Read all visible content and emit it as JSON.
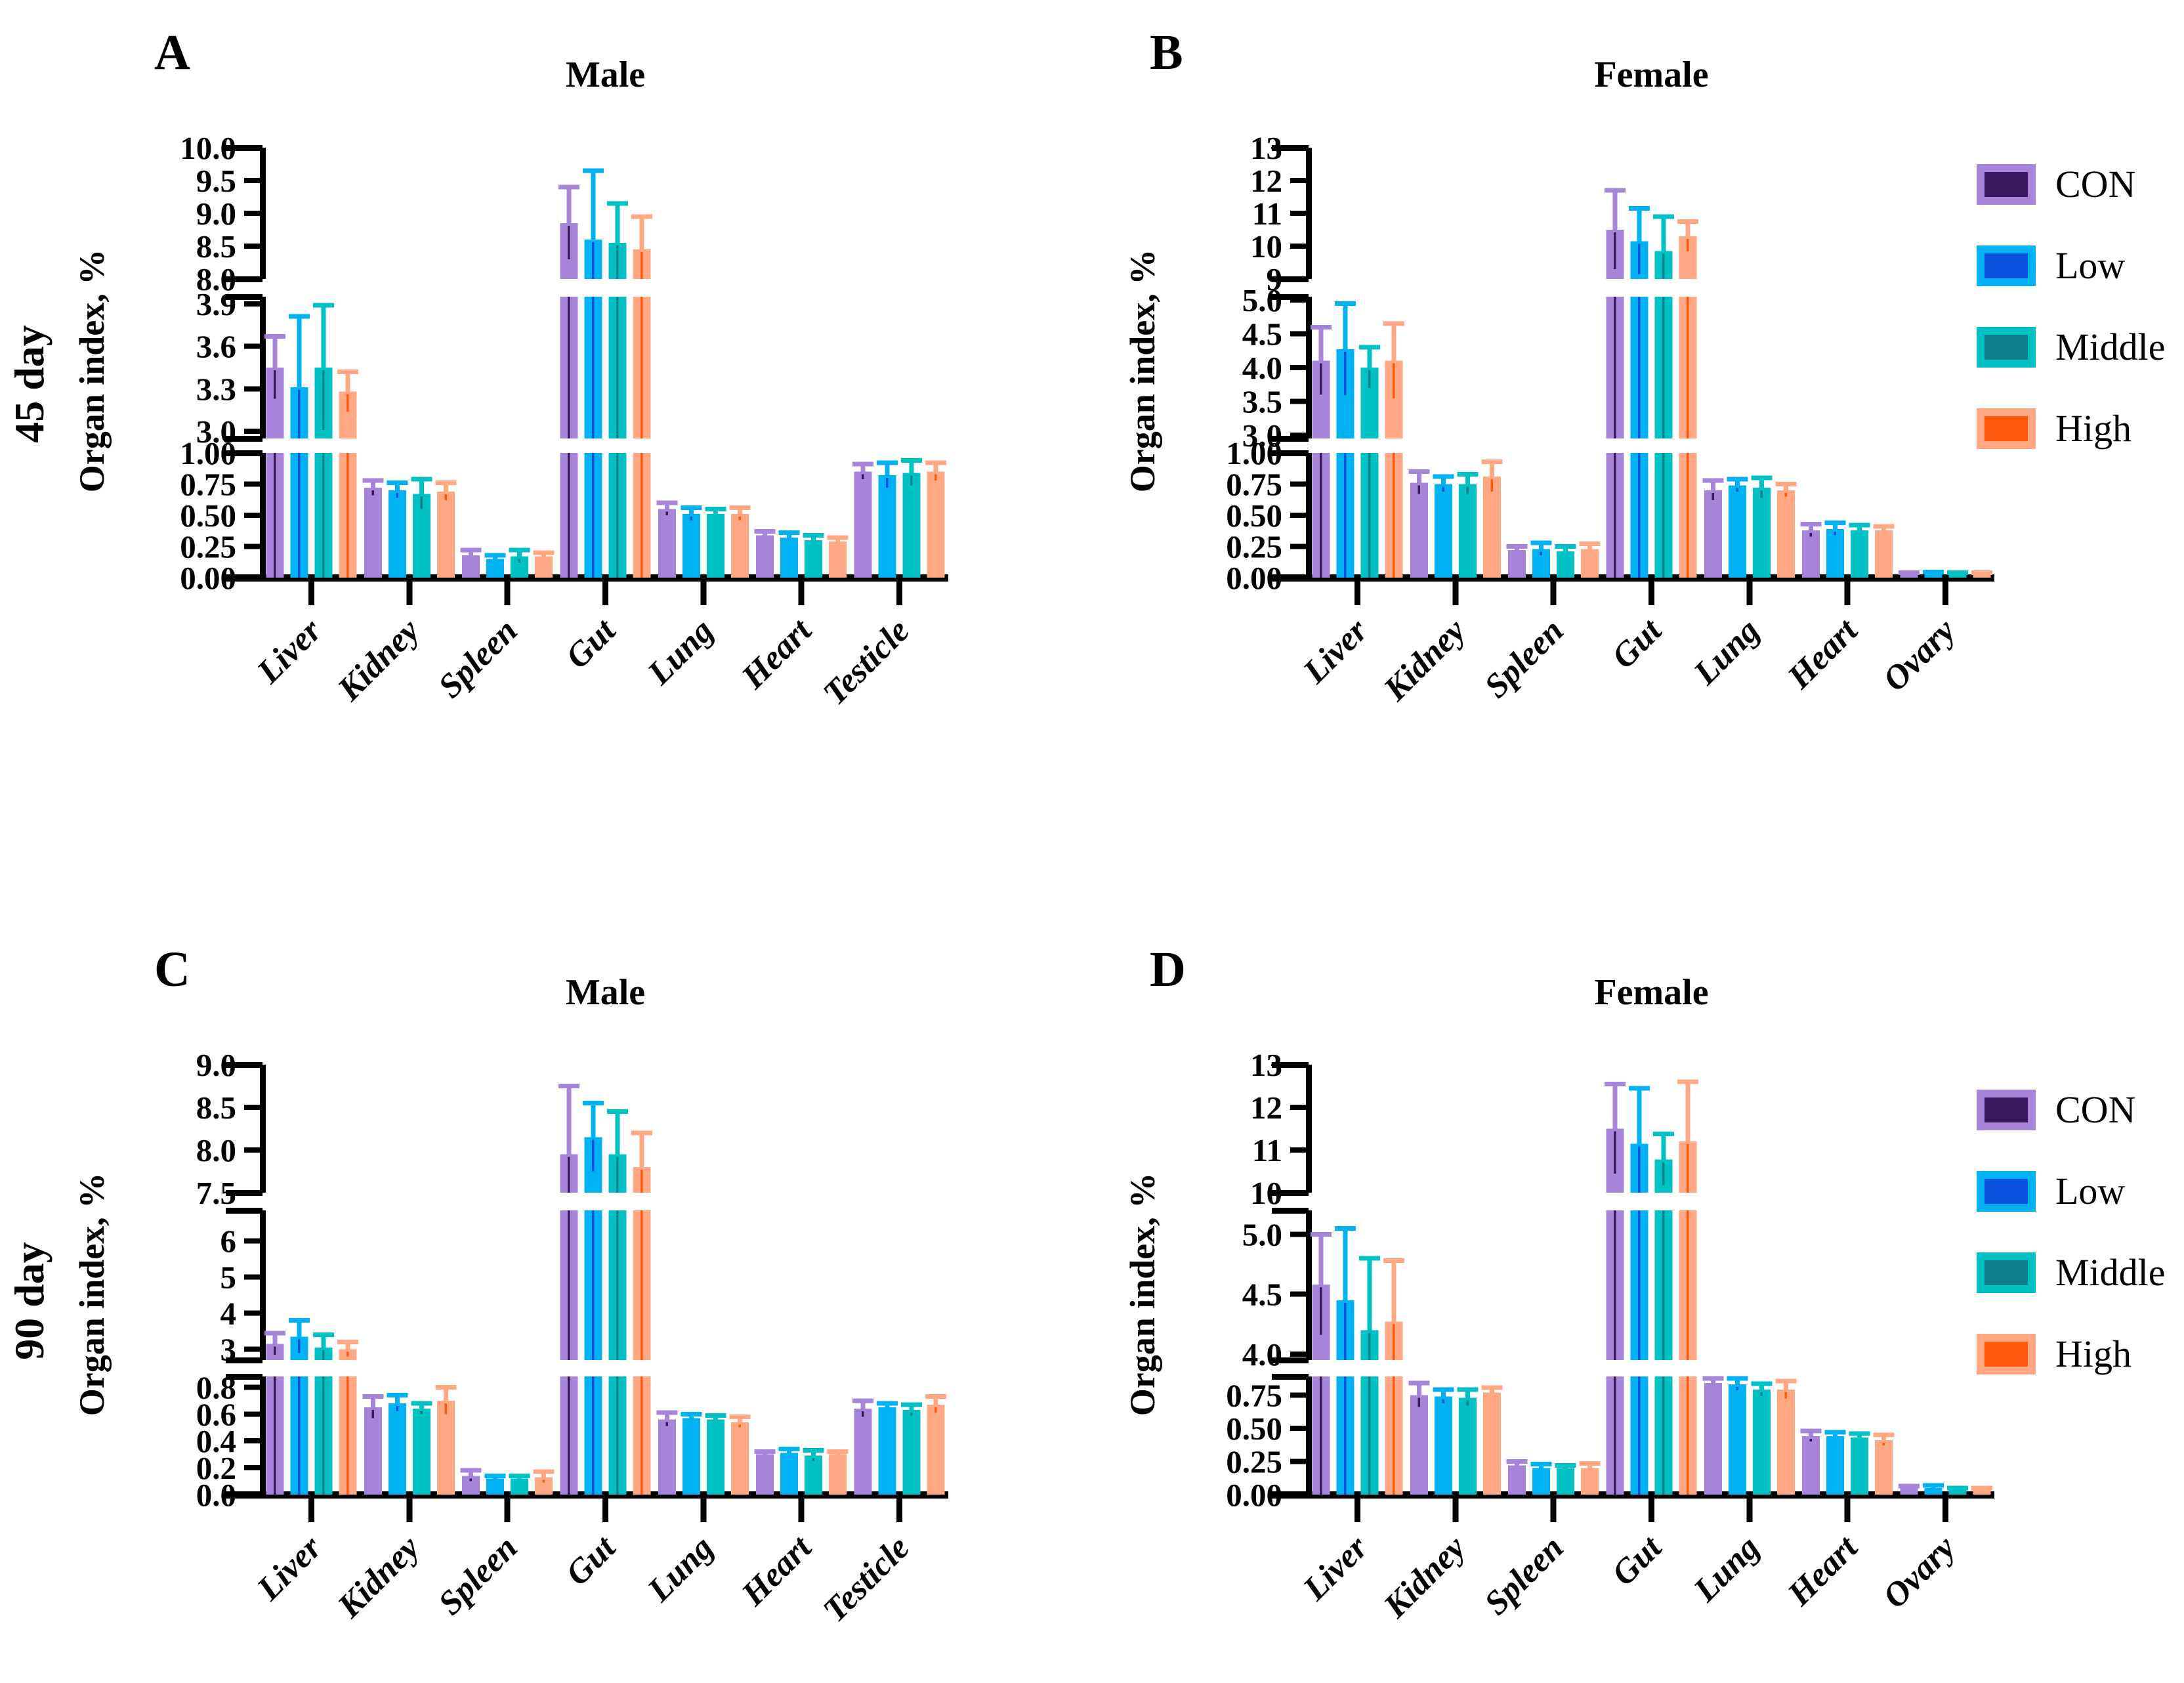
{
  "figure": {
    "ylabel": "Organ index, %",
    "row_labels": [
      "45 day",
      "90 day"
    ]
  },
  "legend": {
    "position": "right",
    "entries": [
      {
        "label": "CON",
        "fill": "#A584DA",
        "dark": "#38185F"
      },
      {
        "label": "Low",
        "fill": "#00B2F2",
        "dark": "#0B53DE"
      },
      {
        "label": "Middle",
        "fill": "#00C2C4",
        "dark": "#0F7F8B"
      },
      {
        "label": "High",
        "fill": "#FFA883",
        "dark": "#FF5A0D"
      }
    ]
  },
  "chart_data": [
    {
      "letter": "A",
      "title": "Male",
      "row_label": "45 day",
      "type": "bar",
      "grid": false,
      "ylabel": "Organ index, %",
      "categories": [
        "Liver",
        "Kidney",
        "Spleen",
        "Gut",
        "Lung",
        "Heart",
        "Testicle"
      ],
      "segments": [
        {
          "range": [
            0.0,
            1.0
          ],
          "ticks": [
            0.0,
            0.25,
            0.5,
            0.75,
            1.0
          ],
          "tick_labels": [
            "0.00",
            "0.25",
            "0.50",
            "0.75",
            "1.00"
          ]
        },
        {
          "range": [
            2.95,
            3.95
          ],
          "ticks": [
            3.0,
            3.3,
            3.6,
            3.9
          ],
          "tick_labels": [
            "3.0",
            "3.3",
            "3.6",
            "3.9"
          ]
        },
        {
          "range": [
            8.0,
            10.0
          ],
          "ticks": [
            8.0,
            8.5,
            9.0,
            9.5,
            10.0
          ],
          "tick_labels": [
            "8.0",
            "8.5",
            "9.0",
            "9.5",
            "10.0"
          ]
        }
      ],
      "series": [
        {
          "name": "CON",
          "values": [
            3.45,
            0.72,
            0.18,
            8.85,
            0.55,
            0.34,
            0.85
          ],
          "errors": [
            0.22,
            0.06,
            0.04,
            0.55,
            0.05,
            0.03,
            0.06
          ]
        },
        {
          "name": "Low",
          "values": [
            3.31,
            0.7,
            0.15,
            8.6,
            0.51,
            0.32,
            0.82
          ],
          "errors": [
            0.5,
            0.06,
            0.03,
            1.05,
            0.05,
            0.04,
            0.1
          ]
        },
        {
          "name": "Middle",
          "values": [
            3.45,
            0.67,
            0.17,
            8.55,
            0.51,
            0.3,
            0.84
          ],
          "errors": [
            0.44,
            0.12,
            0.05,
            0.6,
            0.04,
            0.04,
            0.1
          ]
        },
        {
          "name": "High",
          "values": [
            3.28,
            0.69,
            0.17,
            8.45,
            0.51,
            0.29,
            0.85
          ],
          "errors": [
            0.14,
            0.07,
            0.03,
            0.5,
            0.05,
            0.03,
            0.07
          ]
        }
      ]
    },
    {
      "letter": "B",
      "title": "Female",
      "row_label": "45 day",
      "type": "bar",
      "grid": false,
      "ylabel": "Organ index, %",
      "categories": [
        "Liver",
        "Kidney",
        "Spleen",
        "Gut",
        "Lung",
        "Heart",
        "Ovary"
      ],
      "segments": [
        {
          "range": [
            0.0,
            1.0
          ],
          "ticks": [
            0.0,
            0.25,
            0.5,
            0.75,
            1.0
          ],
          "tick_labels": [
            "0.00",
            "0.25",
            "0.50",
            "0.75",
            "1.00"
          ]
        },
        {
          "range": [
            2.95,
            5.05
          ],
          "ticks": [
            3.0,
            3.5,
            4.0,
            4.5,
            5.0
          ],
          "tick_labels": [
            "3.0",
            "3.5",
            "4.0",
            "4.5",
            "5.0"
          ]
        },
        {
          "range": [
            9.0,
            13.0
          ],
          "ticks": [
            9,
            10,
            11,
            12,
            13
          ],
          "tick_labels": [
            "9",
            "10",
            "11",
            "12",
            "13"
          ]
        }
      ],
      "series": [
        {
          "name": "CON",
          "values": [
            4.1,
            0.76,
            0.22,
            10.5,
            0.7,
            0.38,
            0.03
          ],
          "errors": [
            0.5,
            0.09,
            0.03,
            1.2,
            0.08,
            0.05,
            0.01
          ]
        },
        {
          "name": "Low",
          "values": [
            4.27,
            0.75,
            0.23,
            10.15,
            0.74,
            0.39,
            0.03
          ],
          "errors": [
            0.68,
            0.06,
            0.05,
            1.0,
            0.05,
            0.05,
            0.015
          ]
        },
        {
          "name": "Middle",
          "values": [
            4.0,
            0.75,
            0.21,
            9.85,
            0.72,
            0.38,
            0.03
          ],
          "errors": [
            0.3,
            0.08,
            0.04,
            1.05,
            0.08,
            0.04,
            0.01
          ]
        },
        {
          "name": "High",
          "values": [
            4.1,
            0.81,
            0.23,
            10.3,
            0.7,
            0.38,
            0.03
          ],
          "errors": [
            0.55,
            0.12,
            0.04,
            0.45,
            0.05,
            0.03,
            0.01
          ]
        }
      ]
    },
    {
      "letter": "C",
      "title": "Male",
      "row_label": "90 day",
      "type": "bar",
      "grid": false,
      "ylabel": "Organ index, %",
      "categories": [
        "Liver",
        "Kidney",
        "Spleen",
        "Gut",
        "Lung",
        "Heart",
        "Testicle"
      ],
      "segments": [
        {
          "range": [
            0.0,
            0.88
          ],
          "ticks": [
            0.0,
            0.2,
            0.4,
            0.6,
            0.8
          ],
          "tick_labels": [
            "0.0",
            "0.2",
            "0.4",
            "0.6",
            "0.8"
          ]
        },
        {
          "range": [
            2.7,
            6.85
          ],
          "ticks": [
            3,
            4,
            5,
            6
          ],
          "tick_labels": [
            "3",
            "4",
            "5",
            "6"
          ]
        },
        {
          "range": [
            7.5,
            9.0
          ],
          "ticks": [
            7.5,
            8.0,
            8.5,
            9.0
          ],
          "tick_labels": [
            "7.5",
            "8.0",
            "8.5",
            "9.0"
          ]
        }
      ],
      "series": [
        {
          "name": "CON",
          "values": [
            3.15,
            0.65,
            0.14,
            7.95,
            0.56,
            0.3,
            0.64
          ],
          "errors": [
            0.3,
            0.08,
            0.04,
            0.8,
            0.05,
            0.02,
            0.06
          ]
        },
        {
          "name": "Low",
          "values": [
            3.35,
            0.68,
            0.12,
            8.15,
            0.57,
            0.31,
            0.65
          ],
          "errors": [
            0.45,
            0.06,
            0.02,
            0.4,
            0.03,
            0.03,
            0.03
          ]
        },
        {
          "name": "Middle",
          "values": [
            3.05,
            0.64,
            0.12,
            7.95,
            0.56,
            0.29,
            0.63
          ],
          "errors": [
            0.35,
            0.04,
            0.02,
            0.5,
            0.03,
            0.04,
            0.04
          ]
        },
        {
          "name": "High",
          "values": [
            3.0,
            0.7,
            0.13,
            7.8,
            0.54,
            0.3,
            0.67
          ],
          "errors": [
            0.2,
            0.1,
            0.04,
            0.4,
            0.04,
            0.02,
            0.06
          ]
        }
      ]
    },
    {
      "letter": "D",
      "title": "Female",
      "row_label": "90 day",
      "type": "bar",
      "grid": false,
      "ylabel": "Organ index, %",
      "categories": [
        "Liver",
        "Kidney",
        "Spleen",
        "Gut",
        "Lung",
        "Heart",
        "Ovary"
      ],
      "segments": [
        {
          "range": [
            0.0,
            0.89
          ],
          "ticks": [
            0.0,
            0.25,
            0.5,
            0.75
          ],
          "tick_labels": [
            "0.00",
            "0.25",
            "0.50",
            "0.75"
          ]
        },
        {
          "range": [
            3.95,
            5.2
          ],
          "ticks": [
            4.0,
            4.5,
            5.0
          ],
          "tick_labels": [
            "4.0",
            "4.5",
            "5.0"
          ]
        },
        {
          "range": [
            10.0,
            13.0
          ],
          "ticks": [
            10,
            11,
            12,
            13
          ],
          "tick_labels": [
            "10",
            "11",
            "12",
            "13"
          ]
        }
      ],
      "series": [
        {
          "name": "CON",
          "values": [
            4.58,
            0.75,
            0.22,
            11.5,
            0.84,
            0.44,
            0.05
          ],
          "errors": [
            0.42,
            0.09,
            0.03,
            1.05,
            0.035,
            0.04,
            0.015
          ]
        },
        {
          "name": "Low",
          "values": [
            4.45,
            0.74,
            0.2,
            11.15,
            0.83,
            0.44,
            0.05
          ],
          "errors": [
            0.6,
            0.05,
            0.03,
            1.3,
            0.045,
            0.03,
            0.02
          ]
        },
        {
          "name": "Middle",
          "values": [
            4.2,
            0.73,
            0.2,
            10.78,
            0.79,
            0.43,
            0.04
          ],
          "errors": [
            0.6,
            0.06,
            0.02,
            0.6,
            0.045,
            0.03,
            0.01
          ]
        },
        {
          "name": "High",
          "values": [
            4.27,
            0.77,
            0.2,
            11.2,
            0.79,
            0.41,
            0.04
          ],
          "errors": [
            0.51,
            0.035,
            0.035,
            1.4,
            0.065,
            0.04,
            0.01
          ]
        }
      ]
    }
  ]
}
